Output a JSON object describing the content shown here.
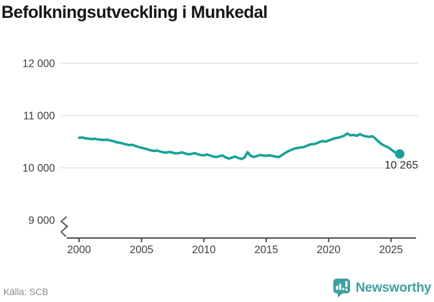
{
  "title": "Befolkningsutveckling i Munkedal",
  "footer": {
    "source": "Källa: SCB",
    "brand": "Newsworthy"
  },
  "colors": {
    "line": "#17a296",
    "grid": "#e3e3e3",
    "axis": "#4d4d4d",
    "tick_text": "#3d3d3d",
    "end_label_text": "#2e2e2e",
    "muted_text": "#8a8a8a",
    "brand": "#3f9fa0",
    "background": "#ffffff"
  },
  "chart_data": {
    "type": "line",
    "title": "Befolkningsutveckling i Munkedal",
    "source_label": "Källa: SCB",
    "xlabel": "",
    "ylabel": "",
    "x_ticks": [
      2000,
      2005,
      2010,
      2015,
      2020,
      2025
    ],
    "y_ticks": [
      {
        "value": 9000,
        "label": "9 000",
        "gridline": false
      },
      {
        "value": 10000,
        "label": "10 000",
        "gridline": true
      },
      {
        "value": 11000,
        "label": "11 000",
        "gridline": true
      },
      {
        "value": 12000,
        "label": "12 000",
        "gridline": true
      }
    ],
    "axis_break": true,
    "legend": "none",
    "end_label": "10 265",
    "last_value": 10265,
    "series": [
      {
        "name": "Befolkning",
        "points": [
          [
            2000.0,
            10575
          ],
          [
            2000.25,
            10580
          ],
          [
            2000.5,
            10565
          ],
          [
            2000.75,
            10558
          ],
          [
            2001.0,
            10550
          ],
          [
            2001.25,
            10556
          ],
          [
            2001.5,
            10545
          ],
          [
            2001.75,
            10538
          ],
          [
            2002.0,
            10534
          ],
          [
            2002.25,
            10540
          ],
          [
            2002.5,
            10524
          ],
          [
            2002.75,
            10510
          ],
          [
            2003.0,
            10490
          ],
          [
            2003.25,
            10480
          ],
          [
            2003.5,
            10466
          ],
          [
            2003.75,
            10450
          ],
          [
            2004.0,
            10436
          ],
          [
            2004.25,
            10442
          ],
          [
            2004.5,
            10420
          ],
          [
            2004.75,
            10400
          ],
          [
            2005.0,
            10385
          ],
          [
            2005.25,
            10370
          ],
          [
            2005.5,
            10352
          ],
          [
            2005.75,
            10336
          ],
          [
            2006.0,
            10322
          ],
          [
            2006.25,
            10332
          ],
          [
            2006.5,
            10312
          ],
          [
            2006.75,
            10296
          ],
          [
            2007.0,
            10292
          ],
          [
            2007.25,
            10306
          ],
          [
            2007.5,
            10290
          ],
          [
            2007.75,
            10276
          ],
          [
            2008.0,
            10281
          ],
          [
            2008.25,
            10296
          ],
          [
            2008.5,
            10276
          ],
          [
            2008.75,
            10260
          ],
          [
            2009.0,
            10266
          ],
          [
            2009.25,
            10281
          ],
          [
            2009.5,
            10262
          ],
          [
            2009.75,
            10246
          ],
          [
            2010.0,
            10240
          ],
          [
            2010.25,
            10256
          ],
          [
            2010.5,
            10236
          ],
          [
            2010.75,
            10216
          ],
          [
            2011.0,
            10206
          ],
          [
            2011.25,
            10226
          ],
          [
            2011.5,
            10236
          ],
          [
            2011.75,
            10200
          ],
          [
            2012.0,
            10176
          ],
          [
            2012.25,
            10196
          ],
          [
            2012.5,
            10216
          ],
          [
            2012.75,
            10190
          ],
          [
            2013.0,
            10170
          ],
          [
            2013.25,
            10196
          ],
          [
            2013.5,
            10300
          ],
          [
            2013.75,
            10232
          ],
          [
            2014.0,
            10206
          ],
          [
            2014.25,
            10226
          ],
          [
            2014.5,
            10246
          ],
          [
            2014.75,
            10236
          ],
          [
            2015.0,
            10230
          ],
          [
            2015.25,
            10240
          ],
          [
            2015.5,
            10226
          ],
          [
            2015.75,
            10214
          ],
          [
            2016.0,
            10206
          ],
          [
            2016.25,
            10242
          ],
          [
            2016.5,
            10282
          ],
          [
            2016.75,
            10316
          ],
          [
            2017.0,
            10344
          ],
          [
            2017.25,
            10368
          ],
          [
            2017.5,
            10380
          ],
          [
            2017.75,
            10390
          ],
          [
            2018.0,
            10398
          ],
          [
            2018.25,
            10422
          ],
          [
            2018.5,
            10446
          ],
          [
            2018.75,
            10452
          ],
          [
            2019.0,
            10466
          ],
          [
            2019.25,
            10492
          ],
          [
            2019.5,
            10512
          ],
          [
            2019.75,
            10502
          ],
          [
            2020.0,
            10522
          ],
          [
            2020.25,
            10546
          ],
          [
            2020.5,
            10566
          ],
          [
            2020.75,
            10576
          ],
          [
            2021.0,
            10592
          ],
          [
            2021.25,
            10616
          ],
          [
            2021.5,
            10656
          ],
          [
            2021.75,
            10622
          ],
          [
            2022.0,
            10632
          ],
          [
            2022.25,
            10612
          ],
          [
            2022.5,
            10646
          ],
          [
            2022.75,
            10616
          ],
          [
            2023.0,
            10602
          ],
          [
            2023.25,
            10592
          ],
          [
            2023.5,
            10606
          ],
          [
            2023.75,
            10560
          ],
          [
            2024.0,
            10502
          ],
          [
            2024.25,
            10452
          ],
          [
            2024.5,
            10420
          ],
          [
            2024.75,
            10396
          ],
          [
            2025.0,
            10352
          ],
          [
            2025.25,
            10308
          ],
          [
            2025.5,
            10282
          ],
          [
            2025.7,
            10265
          ]
        ]
      }
    ]
  }
}
